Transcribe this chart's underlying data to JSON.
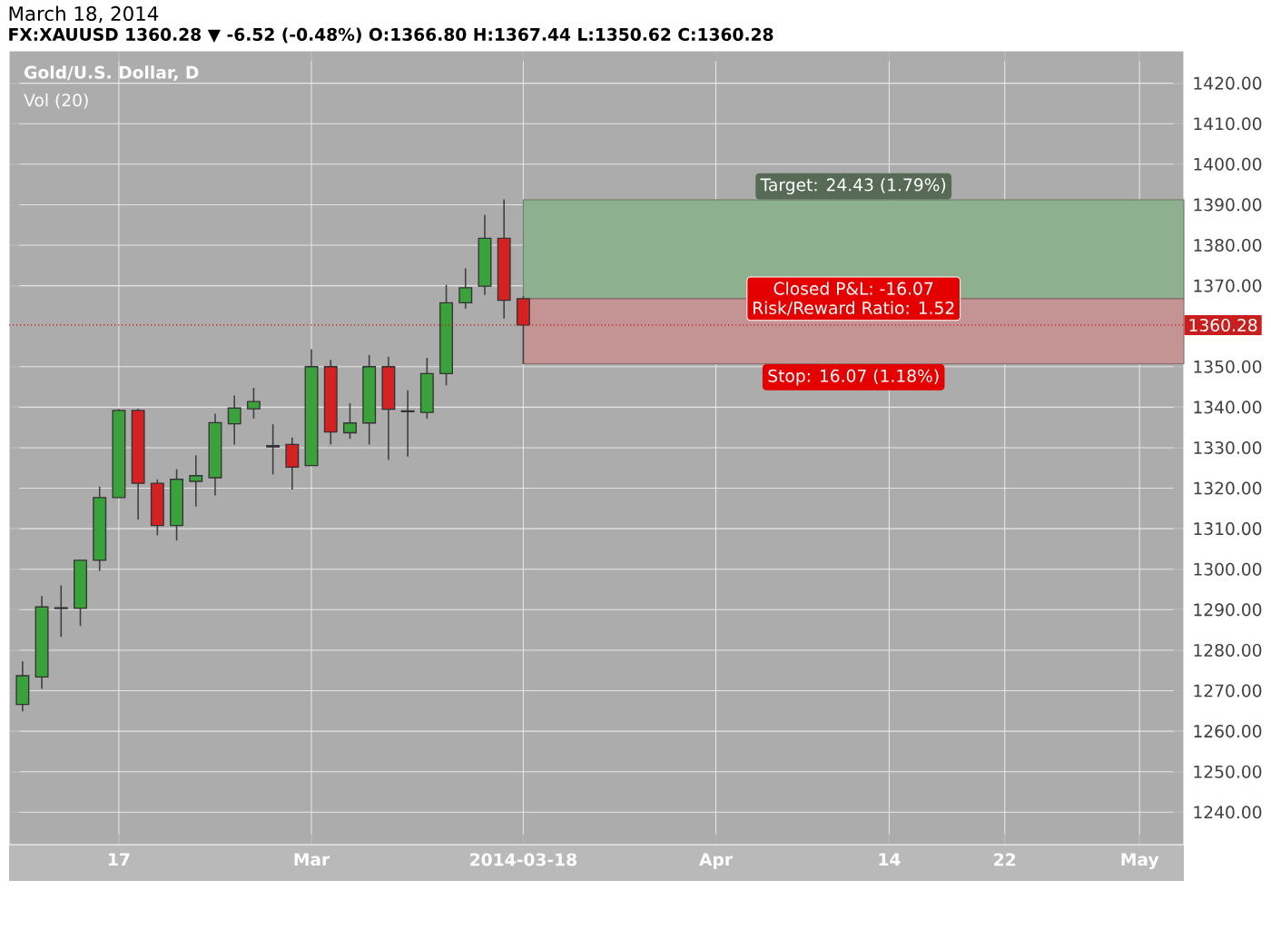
{
  "chart_data": {
    "type": "candlestick",
    "title": "March 18, 2014",
    "subtitle": "FX:XAUUSD 1360.28 ▼ -6.52 (-0.48%) O:1366.80 H:1367.44 L:1350.62 C:1360.28",
    "categories": [
      null,
      null,
      null,
      null,
      null,
      "17",
      null,
      null,
      null,
      null,
      null,
      null,
      null,
      null,
      null,
      "Mar",
      null,
      null,
      null,
      null,
      null,
      null,
      null,
      null,
      null,
      null,
      "2014-03-18",
      null,
      null,
      null,
      null,
      null,
      null,
      null,
      null,
      null,
      "Apr",
      null,
      null,
      null,
      null,
      null,
      null,
      null,
      null,
      "14",
      null,
      null,
      null,
      null,
      null,
      "22",
      null,
      null,
      null,
      null,
      null,
      null,
      "May",
      null,
      null
    ],
    "ohlc": [
      [
        1266.6,
        1277.3,
        1264.9,
        1273.7
      ],
      [
        1273.4,
        1293.4,
        1270.5,
        1290.7
      ],
      [
        1290.5,
        1296.0,
        1283.3,
        1290.3
      ],
      [
        1290.4,
        1302.2,
        1286.0,
        1302.2
      ],
      [
        1302.2,
        1320.4,
        1299.6,
        1317.7
      ],
      [
        1317.7,
        1339.6,
        1317.7,
        1339.2
      ],
      [
        1339.2,
        1339.6,
        1312.3,
        1321.2
      ],
      [
        1321.2,
        1322.2,
        1308.4,
        1310.8
      ],
      [
        1310.8,
        1324.7,
        1307.1,
        1322.2
      ],
      [
        1321.7,
        1328.1,
        1315.5,
        1323.1
      ],
      [
        1322.6,
        1338.4,
        1318.2,
        1336.2
      ],
      [
        1335.9,
        1342.9,
        1330.8,
        1339.8
      ],
      [
        1339.6,
        1344.8,
        1337.2,
        1341.4
      ],
      [
        1330.5,
        1335.8,
        1323.4,
        1330.2
      ],
      [
        1330.8,
        1332.5,
        1319.7,
        1325.2
      ],
      [
        1325.6,
        1354.3,
        1325.6,
        1350.0
      ],
      [
        1350.0,
        1351.7,
        1330.8,
        1333.9
      ],
      [
        1333.7,
        1341.0,
        1332.2,
        1336.1
      ],
      [
        1336.1,
        1352.9,
        1330.8,
        1350.0
      ],
      [
        1350.0,
        1352.5,
        1327.0,
        1339.5
      ],
      [
        1339.1,
        1344.2,
        1327.8,
        1338.9
      ],
      [
        1338.7,
        1352.2,
        1337.2,
        1348.3
      ],
      [
        1348.3,
        1370.2,
        1345.4,
        1365.8
      ],
      [
        1365.8,
        1374.3,
        1364.3,
        1369.5
      ],
      [
        1369.9,
        1387.5,
        1367.7,
        1381.7
      ],
      [
        1381.7,
        1391.3,
        1361.9,
        1366.4
      ],
      [
        1366.8,
        1367.44,
        1350.62,
        1360.28
      ],
      null,
      null,
      null,
      null,
      null,
      null,
      null,
      null,
      null,
      null,
      null,
      null,
      null,
      null,
      null,
      null,
      null,
      null,
      null,
      null,
      null,
      null,
      null,
      null,
      null,
      null,
      null,
      null,
      null,
      null,
      null,
      null,
      null,
      null
    ],
    "colors": [
      "#3aa23a",
      "#3aa23a",
      "#222222",
      "#3aa23a",
      "#3aa23a",
      "#3aa23a",
      "#d42121",
      "#d42121",
      "#3aa23a",
      "#3aa23a",
      "#3aa23a",
      "#3aa23a",
      "#3aa23a",
      "#222222",
      "#d42121",
      "#3aa23a",
      "#d42121",
      "#3aa23a",
      "#3aa23a",
      "#d42121",
      "#222222",
      "#3aa23a",
      "#3aa23a",
      "#3aa23a",
      "#3aa23a",
      "#d42121",
      "#d42121",
      null,
      null,
      null,
      null,
      null,
      null,
      null,
      null,
      null,
      null,
      null,
      null,
      null,
      null,
      null,
      null,
      null,
      null,
      null,
      null,
      null,
      null,
      null,
      null,
      null,
      null,
      null,
      null,
      null,
      null,
      null,
      null,
      null,
      null
    ],
    "ylim": [
      1232,
      1428
    ],
    "yticks": [
      {
        "value": 1240,
        "label": "1240.00"
      },
      {
        "value": 1250,
        "label": "1250.00"
      },
      {
        "value": 1260,
        "label": "1260.00"
      },
      {
        "value": 1270,
        "label": "1270.00"
      },
      {
        "value": 1280,
        "label": "1280.00"
      },
      {
        "value": 1290,
        "label": "1290.00"
      },
      {
        "value": 1300,
        "label": "1300.00"
      },
      {
        "value": 1310,
        "label": "1310.00"
      },
      {
        "value": 1320,
        "label": "1320.00"
      },
      {
        "value": 1330,
        "label": "1330.00"
      },
      {
        "value": 1340,
        "label": "1340.00"
      },
      {
        "value": 1350,
        "label": "1350.00"
      },
      {
        "value": 1370,
        "label": "1370.00"
      },
      {
        "value": 1380,
        "label": "1380.00"
      },
      {
        "value": 1390,
        "label": "1390.00"
      },
      {
        "value": 1400,
        "label": "1400.00"
      },
      {
        "value": 1410,
        "label": "1410.00"
      },
      {
        "value": 1420,
        "label": "1420.00"
      }
    ],
    "grid": true,
    "bands": [
      {
        "axis": "y",
        "from": 1366.8,
        "to": 1391.23,
        "label": "Target: 24.43 (1.79%)",
        "color": "#8fb08f"
      },
      {
        "axis": "y",
        "from": 1350.73,
        "to": 1366.8,
        "label": "Stop: 16.07 (1.18%)",
        "color": "#c49494"
      }
    ],
    "ref_lines": [
      {
        "axis": "y",
        "value": 1360.28,
        "label": "1360.28",
        "color": "#c81e1e"
      }
    ],
    "annotations": [
      "Gold/U.S. Dollar, D",
      "Vol (20)",
      "Closed P&L: -16.07",
      "Risk/Reward Ratio: 1.52"
    ]
  }
}
